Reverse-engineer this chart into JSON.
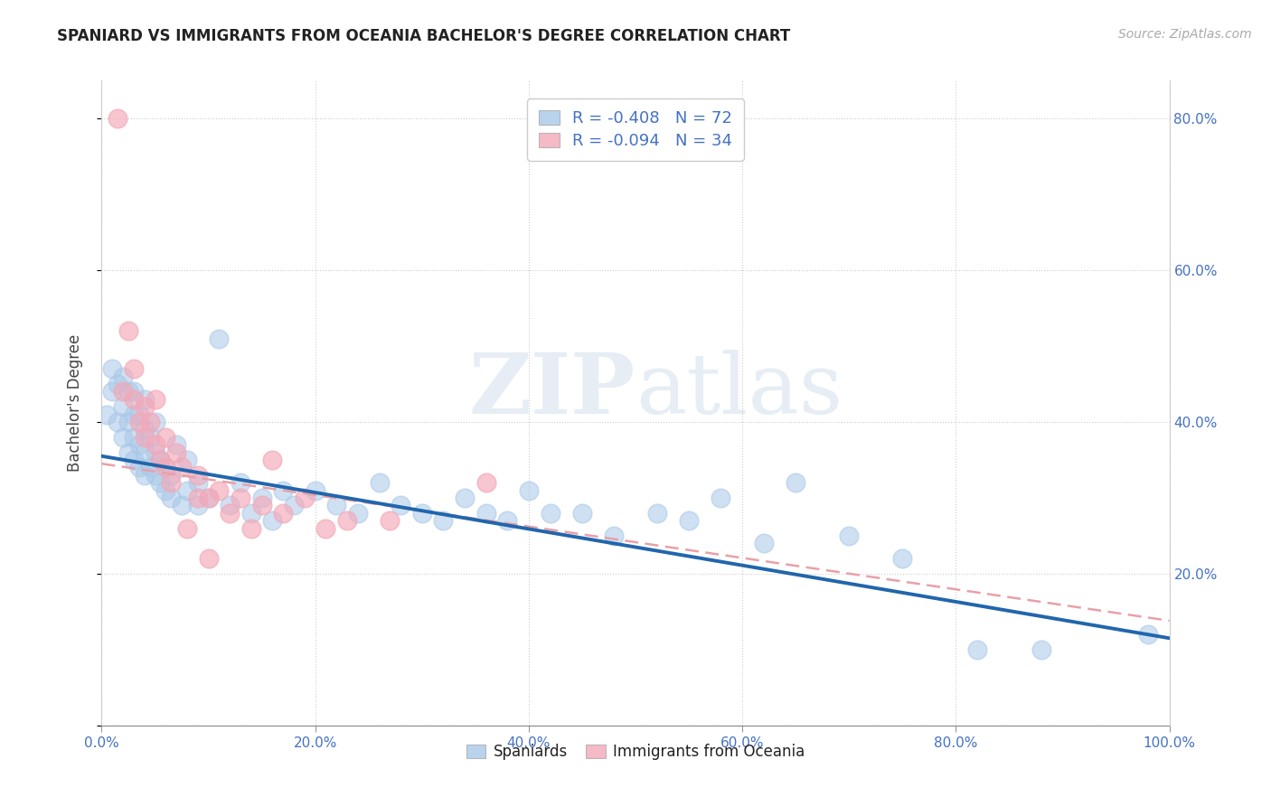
{
  "title": "SPANIARD VS IMMIGRANTS FROM OCEANIA BACHELOR'S DEGREE CORRELATION CHART",
  "source": "Source: ZipAtlas.com",
  "ylabel": "Bachelor's Degree",
  "legend_label1": "R = -0.408   N = 72",
  "legend_label2": "R = -0.094   N = 34",
  "color_blue": "#a8c8e8",
  "color_pink": "#f4a8b8",
  "line_color_blue": "#2166ac",
  "line_color_pink": "#e8a0a8",
  "background_color": "#ffffff",
  "xlim": [
    0.0,
    1.0
  ],
  "ylim": [
    0.0,
    0.85
  ],
  "legend_entries": [
    "Spaniards",
    "Immigrants from Oceania"
  ],
  "blue_line_x0": 0.0,
  "blue_line_y0": 0.355,
  "blue_line_x1": 1.0,
  "blue_line_y1": 0.115,
  "pink_line_x0": 0.0,
  "pink_line_y0": 0.345,
  "pink_line_x1": 1.0,
  "pink_line_y1": 0.138,
  "spaniards_x": [
    0.005,
    0.01,
    0.01,
    0.015,
    0.015,
    0.02,
    0.02,
    0.02,
    0.025,
    0.025,
    0.025,
    0.03,
    0.03,
    0.03,
    0.03,
    0.035,
    0.035,
    0.035,
    0.04,
    0.04,
    0.04,
    0.04,
    0.045,
    0.045,
    0.05,
    0.05,
    0.05,
    0.055,
    0.055,
    0.06,
    0.06,
    0.065,
    0.065,
    0.07,
    0.075,
    0.08,
    0.08,
    0.09,
    0.09,
    0.1,
    0.11,
    0.12,
    0.13,
    0.14,
    0.15,
    0.16,
    0.17,
    0.18,
    0.2,
    0.22,
    0.24,
    0.26,
    0.28,
    0.3,
    0.32,
    0.34,
    0.36,
    0.38,
    0.4,
    0.42,
    0.45,
    0.48,
    0.52,
    0.55,
    0.58,
    0.62,
    0.65,
    0.7,
    0.75,
    0.82,
    0.88,
    0.98
  ],
  "spaniards_y": [
    0.41,
    0.44,
    0.47,
    0.4,
    0.45,
    0.38,
    0.42,
    0.46,
    0.36,
    0.4,
    0.44,
    0.35,
    0.38,
    0.41,
    0.44,
    0.34,
    0.37,
    0.41,
    0.33,
    0.36,
    0.39,
    0.43,
    0.34,
    0.38,
    0.33,
    0.36,
    0.4,
    0.32,
    0.35,
    0.31,
    0.34,
    0.3,
    0.33,
    0.37,
    0.29,
    0.31,
    0.35,
    0.32,
    0.29,
    0.3,
    0.51,
    0.29,
    0.32,
    0.28,
    0.3,
    0.27,
    0.31,
    0.29,
    0.31,
    0.29,
    0.28,
    0.32,
    0.29,
    0.28,
    0.27,
    0.3,
    0.28,
    0.27,
    0.31,
    0.28,
    0.28,
    0.25,
    0.28,
    0.27,
    0.3,
    0.24,
    0.32,
    0.25,
    0.22,
    0.1,
    0.1,
    0.12
  ],
  "oceania_x": [
    0.015,
    0.02,
    0.025,
    0.03,
    0.03,
    0.035,
    0.04,
    0.04,
    0.045,
    0.05,
    0.05,
    0.055,
    0.06,
    0.06,
    0.065,
    0.07,
    0.075,
    0.08,
    0.09,
    0.09,
    0.1,
    0.1,
    0.11,
    0.12,
    0.13,
    0.14,
    0.15,
    0.16,
    0.17,
    0.19,
    0.21,
    0.23,
    0.27,
    0.36
  ],
  "oceania_y": [
    0.8,
    0.44,
    0.52,
    0.47,
    0.43,
    0.4,
    0.42,
    0.38,
    0.4,
    0.37,
    0.43,
    0.35,
    0.38,
    0.34,
    0.32,
    0.36,
    0.34,
    0.26,
    0.3,
    0.33,
    0.22,
    0.3,
    0.31,
    0.28,
    0.3,
    0.26,
    0.29,
    0.35,
    0.28,
    0.3,
    0.26,
    0.27,
    0.27,
    0.32
  ]
}
